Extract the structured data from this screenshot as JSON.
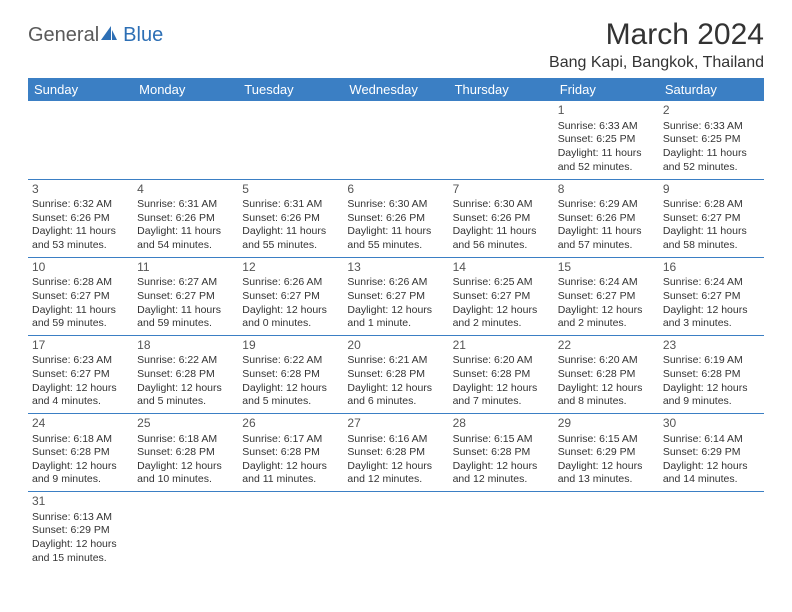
{
  "logo": {
    "part1": "General",
    "part2": "Blue"
  },
  "title": "March 2024",
  "location": "Bang Kapi, Bangkok, Thailand",
  "colors": {
    "header_bg": "#3b7fc4",
    "header_text": "#ffffff",
    "border": "#3b7fc4",
    "text": "#333333",
    "logo_gray": "#5a5a5a",
    "logo_blue": "#2d6fb5"
  },
  "typography": {
    "title_fontsize": 30,
    "location_fontsize": 16,
    "dayheader_fontsize": 13,
    "cell_fontsize": 10.5,
    "daynum_fontsize": 12
  },
  "day_headers": [
    "Sunday",
    "Monday",
    "Tuesday",
    "Wednesday",
    "Thursday",
    "Friday",
    "Saturday"
  ],
  "weeks": [
    [
      null,
      null,
      null,
      null,
      null,
      {
        "n": "1",
        "sr": "Sunrise: 6:33 AM",
        "ss": "Sunset: 6:25 PM",
        "dl": "Daylight: 11 hours and 52 minutes."
      },
      {
        "n": "2",
        "sr": "Sunrise: 6:33 AM",
        "ss": "Sunset: 6:25 PM",
        "dl": "Daylight: 11 hours and 52 minutes."
      }
    ],
    [
      {
        "n": "3",
        "sr": "Sunrise: 6:32 AM",
        "ss": "Sunset: 6:26 PM",
        "dl": "Daylight: 11 hours and 53 minutes."
      },
      {
        "n": "4",
        "sr": "Sunrise: 6:31 AM",
        "ss": "Sunset: 6:26 PM",
        "dl": "Daylight: 11 hours and 54 minutes."
      },
      {
        "n": "5",
        "sr": "Sunrise: 6:31 AM",
        "ss": "Sunset: 6:26 PM",
        "dl": "Daylight: 11 hours and 55 minutes."
      },
      {
        "n": "6",
        "sr": "Sunrise: 6:30 AM",
        "ss": "Sunset: 6:26 PM",
        "dl": "Daylight: 11 hours and 55 minutes."
      },
      {
        "n": "7",
        "sr": "Sunrise: 6:30 AM",
        "ss": "Sunset: 6:26 PM",
        "dl": "Daylight: 11 hours and 56 minutes."
      },
      {
        "n": "8",
        "sr": "Sunrise: 6:29 AM",
        "ss": "Sunset: 6:26 PM",
        "dl": "Daylight: 11 hours and 57 minutes."
      },
      {
        "n": "9",
        "sr": "Sunrise: 6:28 AM",
        "ss": "Sunset: 6:27 PM",
        "dl": "Daylight: 11 hours and 58 minutes."
      }
    ],
    [
      {
        "n": "10",
        "sr": "Sunrise: 6:28 AM",
        "ss": "Sunset: 6:27 PM",
        "dl": "Daylight: 11 hours and 59 minutes."
      },
      {
        "n": "11",
        "sr": "Sunrise: 6:27 AM",
        "ss": "Sunset: 6:27 PM",
        "dl": "Daylight: 11 hours and 59 minutes."
      },
      {
        "n": "12",
        "sr": "Sunrise: 6:26 AM",
        "ss": "Sunset: 6:27 PM",
        "dl": "Daylight: 12 hours and 0 minutes."
      },
      {
        "n": "13",
        "sr": "Sunrise: 6:26 AM",
        "ss": "Sunset: 6:27 PM",
        "dl": "Daylight: 12 hours and 1 minute."
      },
      {
        "n": "14",
        "sr": "Sunrise: 6:25 AM",
        "ss": "Sunset: 6:27 PM",
        "dl": "Daylight: 12 hours and 2 minutes."
      },
      {
        "n": "15",
        "sr": "Sunrise: 6:24 AM",
        "ss": "Sunset: 6:27 PM",
        "dl": "Daylight: 12 hours and 2 minutes."
      },
      {
        "n": "16",
        "sr": "Sunrise: 6:24 AM",
        "ss": "Sunset: 6:27 PM",
        "dl": "Daylight: 12 hours and 3 minutes."
      }
    ],
    [
      {
        "n": "17",
        "sr": "Sunrise: 6:23 AM",
        "ss": "Sunset: 6:27 PM",
        "dl": "Daylight: 12 hours and 4 minutes."
      },
      {
        "n": "18",
        "sr": "Sunrise: 6:22 AM",
        "ss": "Sunset: 6:28 PM",
        "dl": "Daylight: 12 hours and 5 minutes."
      },
      {
        "n": "19",
        "sr": "Sunrise: 6:22 AM",
        "ss": "Sunset: 6:28 PM",
        "dl": "Daylight: 12 hours and 5 minutes."
      },
      {
        "n": "20",
        "sr": "Sunrise: 6:21 AM",
        "ss": "Sunset: 6:28 PM",
        "dl": "Daylight: 12 hours and 6 minutes."
      },
      {
        "n": "21",
        "sr": "Sunrise: 6:20 AM",
        "ss": "Sunset: 6:28 PM",
        "dl": "Daylight: 12 hours and 7 minutes."
      },
      {
        "n": "22",
        "sr": "Sunrise: 6:20 AM",
        "ss": "Sunset: 6:28 PM",
        "dl": "Daylight: 12 hours and 8 minutes."
      },
      {
        "n": "23",
        "sr": "Sunrise: 6:19 AM",
        "ss": "Sunset: 6:28 PM",
        "dl": "Daylight: 12 hours and 9 minutes."
      }
    ],
    [
      {
        "n": "24",
        "sr": "Sunrise: 6:18 AM",
        "ss": "Sunset: 6:28 PM",
        "dl": "Daylight: 12 hours and 9 minutes."
      },
      {
        "n": "25",
        "sr": "Sunrise: 6:18 AM",
        "ss": "Sunset: 6:28 PM",
        "dl": "Daylight: 12 hours and 10 minutes."
      },
      {
        "n": "26",
        "sr": "Sunrise: 6:17 AM",
        "ss": "Sunset: 6:28 PM",
        "dl": "Daylight: 12 hours and 11 minutes."
      },
      {
        "n": "27",
        "sr": "Sunrise: 6:16 AM",
        "ss": "Sunset: 6:28 PM",
        "dl": "Daylight: 12 hours and 12 minutes."
      },
      {
        "n": "28",
        "sr": "Sunrise: 6:15 AM",
        "ss": "Sunset: 6:28 PM",
        "dl": "Daylight: 12 hours and 12 minutes."
      },
      {
        "n": "29",
        "sr": "Sunrise: 6:15 AM",
        "ss": "Sunset: 6:29 PM",
        "dl": "Daylight: 12 hours and 13 minutes."
      },
      {
        "n": "30",
        "sr": "Sunrise: 6:14 AM",
        "ss": "Sunset: 6:29 PM",
        "dl": "Daylight: 12 hours and 14 minutes."
      }
    ],
    [
      {
        "n": "31",
        "sr": "Sunrise: 6:13 AM",
        "ss": "Sunset: 6:29 PM",
        "dl": "Daylight: 12 hours and 15 minutes."
      },
      null,
      null,
      null,
      null,
      null,
      null
    ]
  ]
}
